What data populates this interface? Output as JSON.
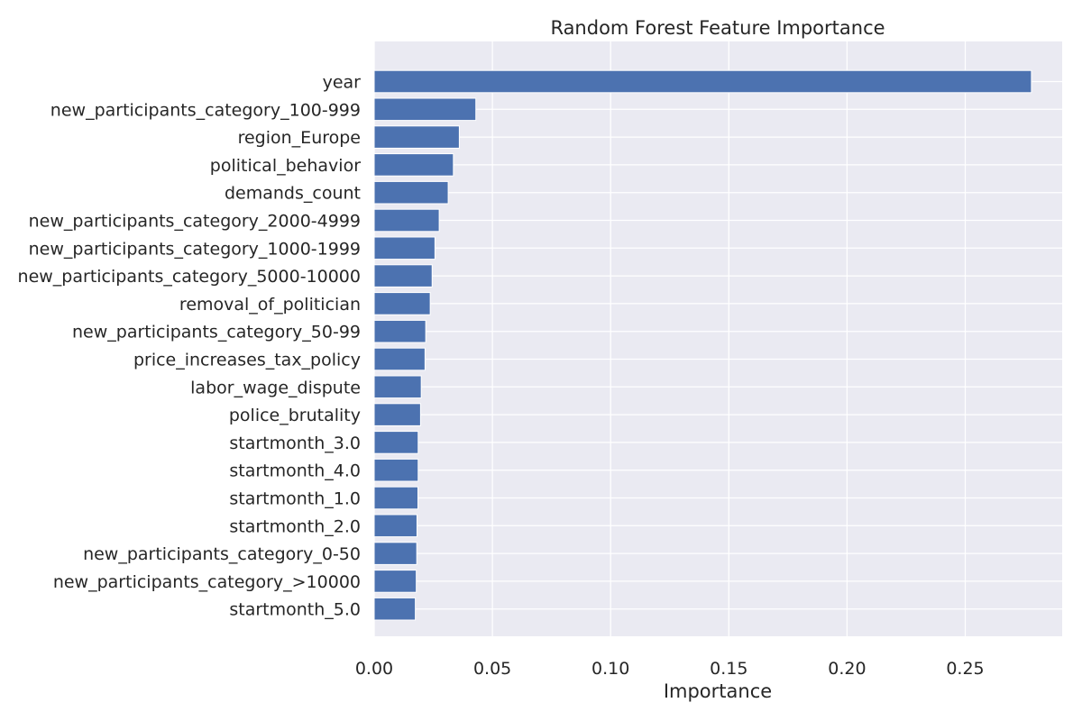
{
  "chart_data": {
    "type": "bar",
    "orientation": "horizontal",
    "title": "Random Forest Feature Importance",
    "xlabel": "Importance",
    "ylabel": "",
    "xlim": [
      0,
      0.291
    ],
    "xticks": [
      0.0,
      0.05,
      0.1,
      0.15,
      0.2,
      0.25
    ],
    "xtick_labels": [
      "0.00",
      "0.05",
      "0.10",
      "0.15",
      "0.20",
      "0.25"
    ],
    "grid": true,
    "categories": [
      "year",
      "new_participants_category_100-999",
      "region_Europe",
      "political_behavior",
      "demands_count",
      "new_participants_category_2000-4999",
      "new_participants_category_1000-1999",
      "new_participants_category_5000-10000",
      "removal_of_politician",
      "new_participants_category_50-99",
      "price_increases_tax_policy",
      "labor_wage_dispute",
      "police_brutality",
      "startmonth_3.0",
      "startmonth_4.0",
      "startmonth_1.0",
      "startmonth_2.0",
      "new_participants_category_0-50",
      "new_participants_category_>10000",
      "startmonth_5.0"
    ],
    "values": [
      0.278,
      0.043,
      0.036,
      0.0335,
      0.0313,
      0.0275,
      0.0257,
      0.0245,
      0.0237,
      0.0218,
      0.0215,
      0.0199,
      0.0196,
      0.0186,
      0.0186,
      0.0185,
      0.0181,
      0.018,
      0.0178,
      0.0174
    ],
    "bar_color": "#4c72b0",
    "background_color": "#eaeaf2"
  }
}
